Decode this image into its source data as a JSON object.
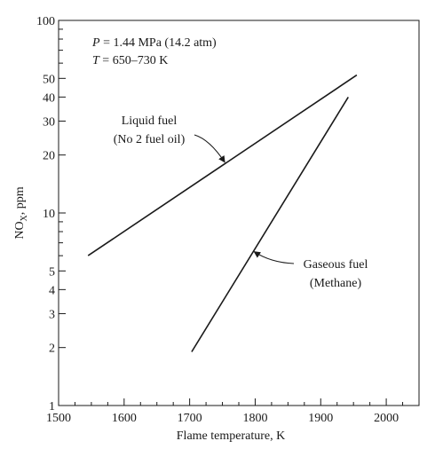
{
  "chart_data": {
    "type": "line",
    "xlabel": "Flame temperature, K",
    "ylabel_main": "NO",
    "ylabel_sub": "X",
    "ylabel_tail": ", ppm",
    "xlim": [
      1500,
      2050
    ],
    "ylim": [
      1,
      100
    ],
    "yscale": "log",
    "xticks": [
      1500,
      1600,
      1700,
      1800,
      1900,
      2000
    ],
    "yticks_labeled": [
      1,
      2,
      3,
      4,
      5,
      10,
      20,
      30,
      40,
      50,
      100
    ],
    "yticks_minor": [
      6,
      7,
      8,
      9,
      60,
      70,
      80,
      90
    ],
    "grid": false,
    "conditions": [
      {
        "var": "P",
        "text": " = 1.44 MPa (14.2 atm)"
      },
      {
        "var": "T",
        "text": " = 650–730 K"
      }
    ],
    "series": [
      {
        "name": "Liquid fuel (No 2 fuel oil)",
        "label_lines": [
          "Liquid fuel",
          "(No 2 fuel oil)"
        ],
        "x": [
          1545,
          1955
        ],
        "y": [
          6,
          52
        ]
      },
      {
        "name": "Gaseous fuel (Methane)",
        "label_lines": [
          "Gaseous fuel",
          "(Methane)"
        ],
        "x": [
          1703,
          1942
        ],
        "y": [
          1.9,
          40
        ]
      }
    ]
  }
}
